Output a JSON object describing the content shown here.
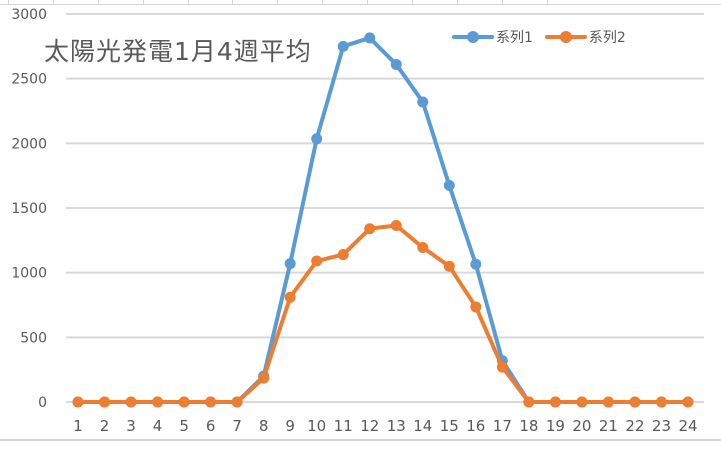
{
  "chart_data": {
    "type": "line",
    "title": "太陽光発電1月4週平均",
    "xlabel": "",
    "ylabel": "",
    "x": [
      1,
      2,
      3,
      4,
      5,
      6,
      7,
      8,
      9,
      10,
      11,
      12,
      13,
      14,
      15,
      16,
      17,
      18,
      19,
      20,
      21,
      22,
      23,
      24
    ],
    "series": [
      {
        "name": "系列1",
        "color": "#5B9BD5",
        "values": [
          0,
          0,
          0,
          0,
          0,
          0,
          0,
          200,
          1070,
          2035,
          2750,
          2815,
          2610,
          2320,
          1675,
          1065,
          320,
          0,
          0,
          0,
          0,
          0,
          0,
          0
        ]
      },
      {
        "name": "系列2",
        "color": "#ED7D31",
        "values": [
          0,
          0,
          0,
          0,
          0,
          0,
          0,
          185,
          810,
          1090,
          1140,
          1340,
          1365,
          1195,
          1050,
          735,
          270,
          0,
          0,
          0,
          0,
          0,
          0,
          0
        ]
      }
    ],
    "ylim": [
      0,
      3000
    ],
    "yticks": [
      0,
      500,
      1000,
      1500,
      2000,
      2500,
      3000
    ],
    "grid": true,
    "legend_position": "top-right",
    "markers": true
  },
  "legend": {
    "items": [
      {
        "label": "系列1",
        "color": "#5B9BD5"
      },
      {
        "label": "系列2",
        "color": "#ED7D31"
      }
    ]
  },
  "colors": {
    "gridline": "#d9d9d9",
    "axis_text": "#595959",
    "title_text": "#595959"
  }
}
